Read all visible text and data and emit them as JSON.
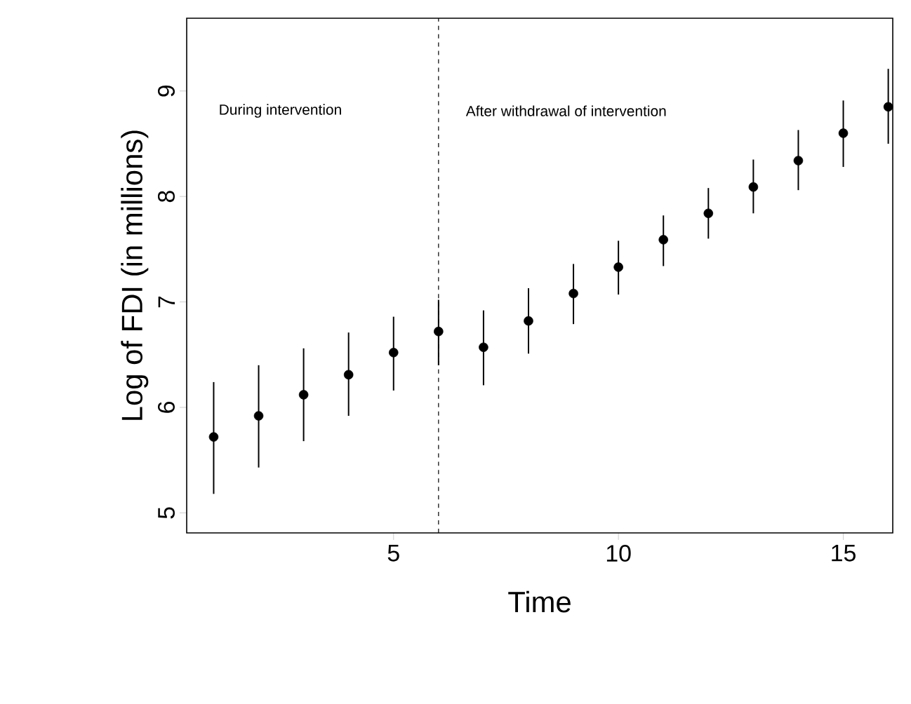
{
  "chart_data": {
    "type": "scatter",
    "xlabel": "Time",
    "ylabel": "Log of FDI (in millions)",
    "x": [
      1,
      2,
      3,
      4,
      5,
      6,
      7,
      8,
      9,
      10,
      11,
      12,
      13,
      14,
      15,
      16
    ],
    "series": [
      {
        "color": "#000000",
        "values": [
          5.72,
          5.92,
          6.12,
          6.31,
          6.52,
          6.72,
          6.57,
          6.82,
          7.08,
          7.33,
          7.59,
          7.84,
          8.09,
          8.34,
          8.6,
          8.85
        ],
        "errors": [
          [
            5.18,
            6.24
          ],
          [
            5.43,
            6.4
          ],
          [
            5.68,
            6.56
          ],
          [
            5.92,
            6.71
          ],
          [
            6.16,
            6.86
          ],
          [
            6.4,
            7.02
          ],
          [
            6.21,
            6.92
          ],
          [
            6.51,
            7.13
          ],
          [
            6.79,
            7.36
          ],
          [
            7.07,
            7.58
          ],
          [
            7.34,
            7.82
          ],
          [
            7.6,
            8.08
          ],
          [
            7.84,
            8.35
          ],
          [
            8.06,
            8.63
          ],
          [
            8.28,
            8.91
          ],
          [
            8.5,
            9.21
          ]
        ]
      }
    ],
    "xlim": [
      0.4,
      16.1
    ],
    "ylim": [
      4.81,
      9.69
    ],
    "xticks": [
      5,
      10,
      15
    ],
    "yticks": [
      5,
      6,
      7,
      8,
      9
    ],
    "ref_lines": [
      {
        "axis": "x",
        "value": 6,
        "line_style": "dashed"
      }
    ],
    "annotations": [
      "During intervention",
      "After withdrawal of intervention"
    ],
    "marker": "circle",
    "grid": false
  }
}
